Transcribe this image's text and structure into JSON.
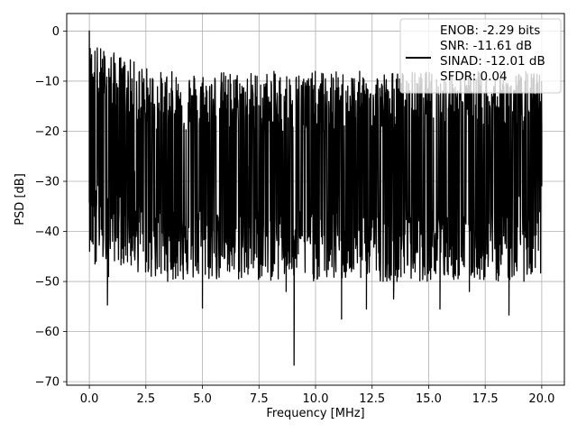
{
  "chart_data": {
    "type": "line",
    "title": "",
    "xlabel": "Frequency [MHz]",
    "ylabel": "PSD [dB]",
    "xlim": [
      -1.0,
      21.0
    ],
    "ylim": [
      -70.7,
      3.5
    ],
    "xticks": [
      0.0,
      2.5,
      5.0,
      7.5,
      10.0,
      12.5,
      15.0,
      17.5,
      20.0
    ],
    "xtick_labels": [
      "0.0",
      "2.5",
      "5.0",
      "7.5",
      "10.0",
      "12.5",
      "15.0",
      "17.5",
      "20.0"
    ],
    "yticks": [
      0,
      -10,
      -20,
      -30,
      -40,
      -50,
      -60,
      -70
    ],
    "ytick_labels": [
      "0",
      "−10",
      "−20",
      "−30",
      "−40",
      "−50",
      "−60",
      "−70"
    ],
    "grid": true,
    "legend_position": "top-right",
    "series": [
      {
        "name": "ENOB: -2.29 bits\nSNR: -11.61 dB\nSINAD: -12.01 dB\nSFDR: 0.04",
        "color": "#000000",
        "noise_band_db": [
          -18,
          -42
        ],
        "x": [
          0.0,
          0.02,
          0.05,
          0.08,
          0.12,
          0.16,
          0.2,
          0.25,
          0.3,
          0.4,
          0.5,
          0.6,
          0.8,
          0.85,
          1.0,
          1.5,
          2.0,
          2.5,
          2.6,
          3.0,
          3.5,
          3.6,
          4.0,
          5.0,
          5.5,
          6.0,
          6.2,
          7.0,
          7.5,
          8.0,
          8.7,
          9.05,
          9.5,
          10.0,
          11.0,
          11.15,
          12.0,
          12.25,
          13.0,
          13.45,
          14.0,
          15.0,
          15.5,
          16.0,
          16.8,
          17.0,
          18.0,
          18.55,
          19.0,
          19.5,
          20.0
        ],
        "y": [
          0.0,
          -13.5,
          -5.5,
          -9.5,
          -22.0,
          -18.0,
          -35.0,
          -46.5,
          -46.0,
          -24.0,
          -22.0,
          -45.0,
          -54.7,
          -49.0,
          -23.0,
          -26.0,
          -28.0,
          -33.0,
          -48.0,
          -28.0,
          -21.0,
          -47.0,
          -28.0,
          -55.3,
          -30.0,
          -26.0,
          -48.0,
          -27.0,
          -40.0,
          -31.0,
          -52.0,
          -66.7,
          -42.0,
          -31.0,
          -33.0,
          -57.5,
          -29.0,
          -55.5,
          -32.0,
          -53.5,
          -30.0,
          -31.0,
          -55.5,
          -29.0,
          -52.0,
          -30.0,
          -28.0,
          -56.7,
          -33.0,
          -30.0,
          -31.0
        ]
      }
    ]
  }
}
